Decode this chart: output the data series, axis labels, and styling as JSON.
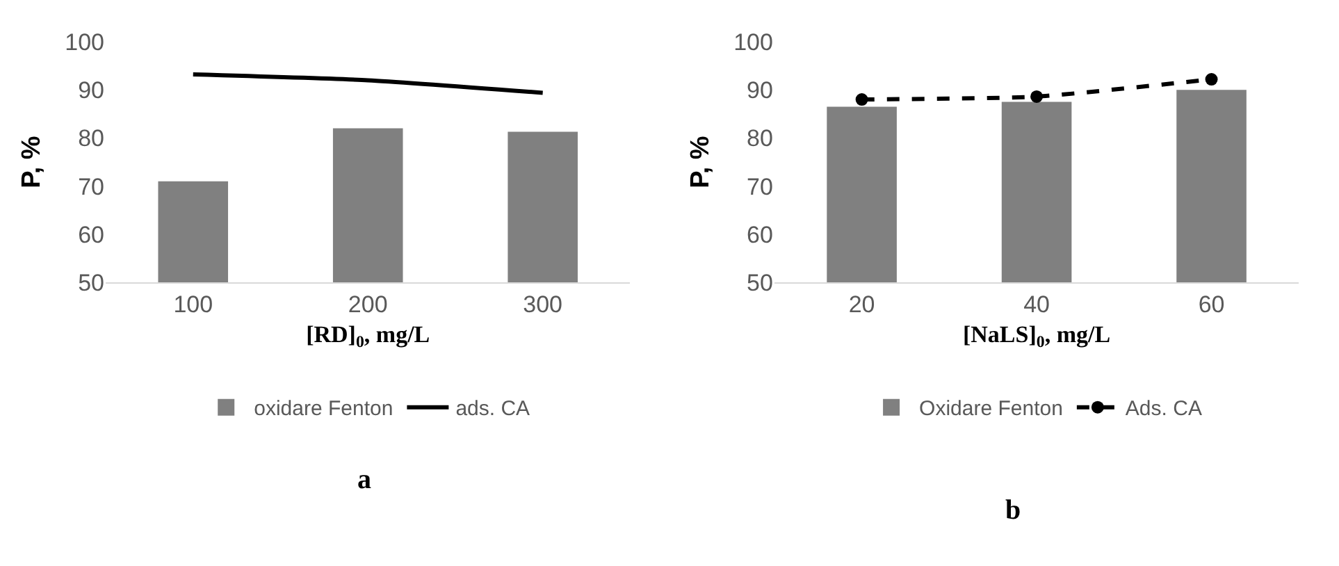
{
  "chart_data": [
    {
      "type": "bar",
      "categories": [
        "100",
        "200",
        "300"
      ],
      "xlabel": "[RD]$_{0}$, mg/L",
      "ylabel": "P, %",
      "ylim": [
        50,
        100
      ],
      "yticks": [
        50,
        60,
        70,
        80,
        90,
        100
      ],
      "legend": "bottom",
      "annotations": [
        "a"
      ],
      "series": [
        {
          "name": "oxidare Fenton",
          "type": "bar",
          "color": "#808080",
          "values": [
            71.0,
            82.0,
            81.3
          ]
        },
        {
          "name": "ads. CA",
          "type": "line",
          "color": "#000000",
          "line_style": "solid",
          "marker": "none",
          "values": [
            93.2,
            92.0,
            89.4
          ]
        }
      ]
    },
    {
      "type": "bar",
      "categories": [
        "20",
        "40",
        "60"
      ],
      "xlabel": "[NaLS]$_{0}$, mg/L",
      "ylabel": "P, %",
      "ylim": [
        50,
        100
      ],
      "yticks": [
        50,
        60,
        70,
        80,
        90,
        100
      ],
      "legend": "bottom",
      "annotations": [
        "b"
      ],
      "series": [
        {
          "name": "Oxidare Fenton",
          "type": "bar",
          "color": "#808080",
          "values": [
            86.5,
            87.5,
            90.0
          ]
        },
        {
          "name": "Ads. CA",
          "type": "line",
          "color": "#000000",
          "line_style": "dashed",
          "marker": "circle",
          "values": [
            88.0,
            88.6,
            92.2
          ]
        }
      ]
    }
  ]
}
